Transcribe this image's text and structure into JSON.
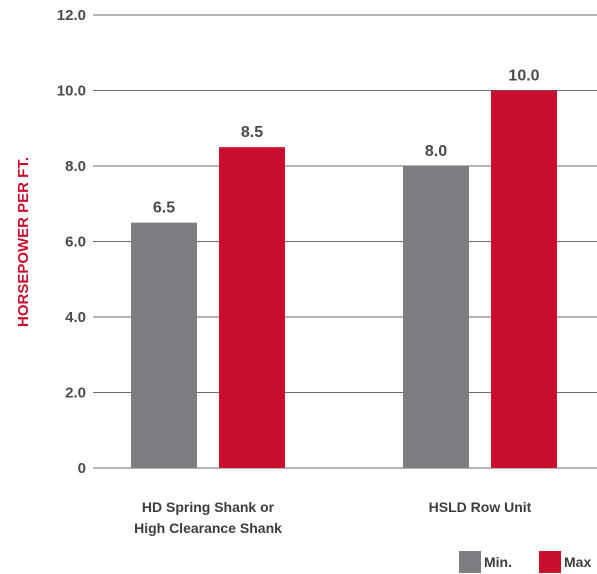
{
  "chart_data": {
    "type": "bar",
    "title": "",
    "ylabel": "HORSEPOWER PER FT.",
    "xlabel": "",
    "ylim": [
      0,
      12
    ],
    "ytick_labels": [
      "0",
      "2.0",
      "4.0",
      "6.0",
      "8.0",
      "10.0",
      "12.0"
    ],
    "ytick_values": [
      0,
      2,
      4,
      6,
      8,
      10,
      12
    ],
    "categories": [
      [
        "HD Spring Shank or",
        "High Clearance Shank"
      ],
      [
        "HSLD Row Unit"
      ]
    ],
    "series": [
      {
        "name": "Min.",
        "values": [
          6.5,
          8.0
        ],
        "labels": [
          "6.5",
          "8.0"
        ],
        "color": "#7d7e82"
      },
      {
        "name": "Max",
        "values": [
          8.5,
          10.0
        ],
        "labels": [
          "8.5",
          "10.0"
        ],
        "color": "#c8102e"
      }
    ],
    "legend_position": "bottom-right",
    "grid": true
  }
}
